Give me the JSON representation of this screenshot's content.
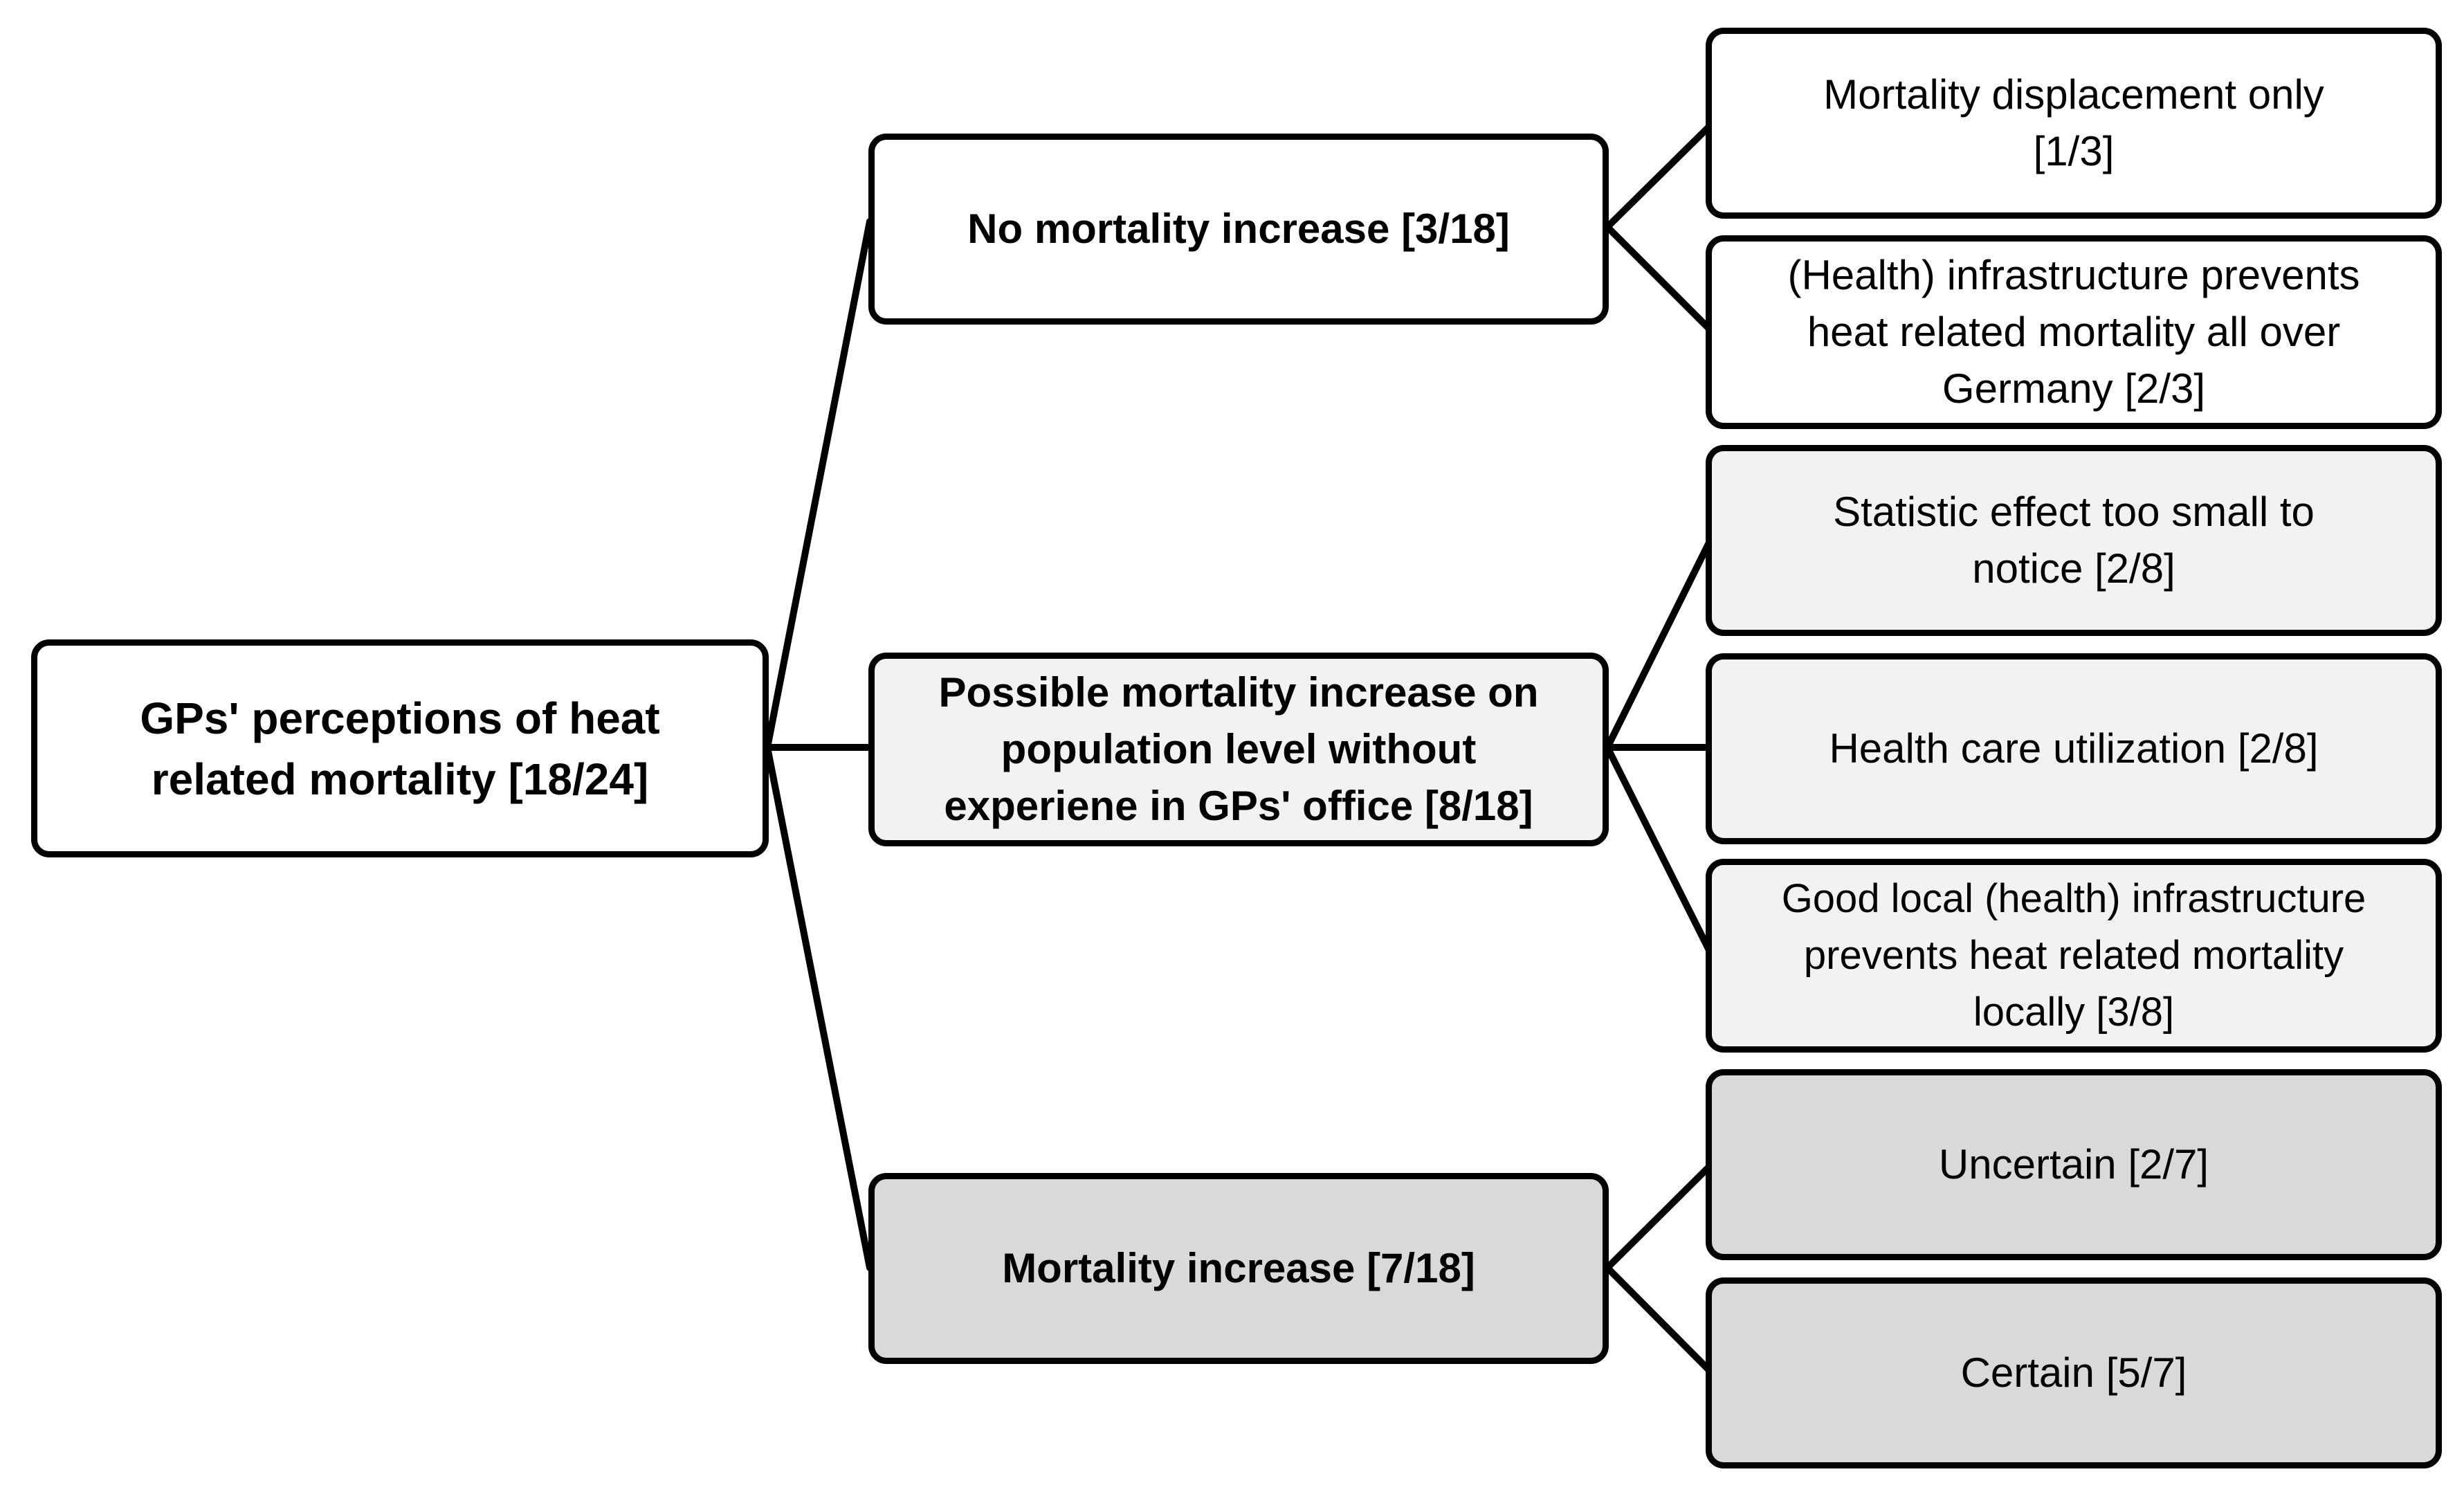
{
  "diagram": {
    "root": {
      "label": "GPs' perceptions of heat\nrelated mortality [18/24]"
    },
    "branches": [
      {
        "label": "No mortality increase [3/18]",
        "shade": "#ffffff",
        "children": [
          {
            "label": "Mortality displacement only\n[1/3]"
          },
          {
            "label": "(Health) infrastructure prevents\nheat related mortality all over\nGermany [2/3]"
          }
        ]
      },
      {
        "label": "Possible mortality increase on\npopulation level without\nexperiene in GPs' office [8/18]",
        "shade": "#f2f2f2",
        "children": [
          {
            "label": "Statistic effect too small to\nnotice [2/8]"
          },
          {
            "label": "Health care utilization [2/8]"
          },
          {
            "label": "Good local (health) infrastructure\nprevents heat related mortality\nlocally [3/8]"
          }
        ]
      },
      {
        "label": "Mortality increase [7/18]",
        "shade": "#d9d9d9",
        "children": [
          {
            "label": "Uncertain [2/7]"
          },
          {
            "label": "Certain [5/7]"
          }
        ]
      }
    ],
    "line_color": "#000000"
  }
}
